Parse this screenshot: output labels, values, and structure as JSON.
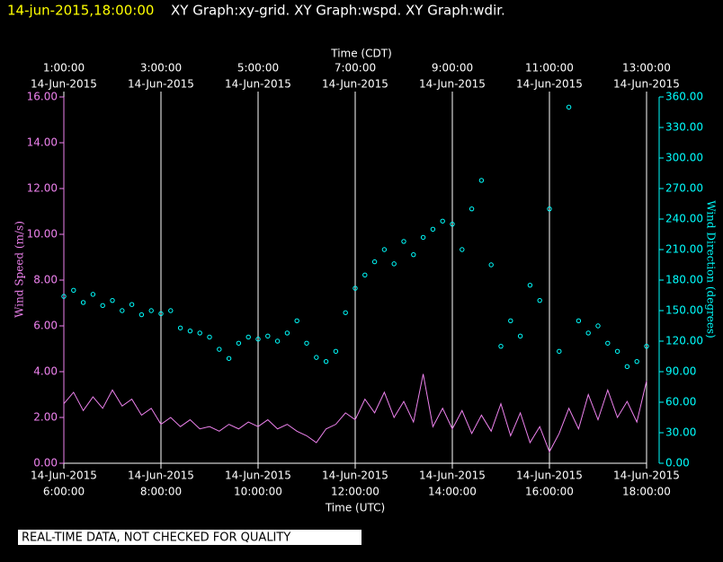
{
  "chart_data": {
    "type": "line_scatter",
    "title_time": "14-jun-2015,18:00:00",
    "title": "XY Graph:xy-grid.  XY Graph:wspd.  XY Graph:wdir.",
    "x_top_label": "Time (CDT)",
    "xlabel": "Time (UTC)",
    "ylabel": "Wind Speed (m/s)",
    "y2label": "Wind Direction (degrees)",
    "footer": "REAL-TIME DATA, NOT CHECKED FOR QUALITY",
    "grid": true,
    "xlim": [
      6,
      18
    ],
    "xticks": [
      {
        "value": 6,
        "label": [
          "14-Jun-2015",
          "6:00:00"
        ]
      },
      {
        "value": 8,
        "label": [
          "14-Jun-2015",
          "8:00:00"
        ]
      },
      {
        "value": 10,
        "label": [
          "14-Jun-2015",
          "10:00:00"
        ]
      },
      {
        "value": 12,
        "label": [
          "14-Jun-2015",
          "12:00:00"
        ]
      },
      {
        "value": 14,
        "label": [
          "14-Jun-2015",
          "14:00:00"
        ]
      },
      {
        "value": 16,
        "label": [
          "14-Jun-2015",
          "16:00:00"
        ]
      },
      {
        "value": 18,
        "label": [
          "14-Jun-2015",
          "18:00:00"
        ]
      }
    ],
    "x2ticks": [
      {
        "value": 6,
        "label": [
          "1:00:00",
          "14-Jun-2015"
        ]
      },
      {
        "value": 8,
        "label": [
          "3:00:00",
          "14-Jun-2015"
        ]
      },
      {
        "value": 10,
        "label": [
          "5:00:00",
          "14-Jun-2015"
        ]
      },
      {
        "value": 12,
        "label": [
          "7:00:00",
          "14-Jun-2015"
        ]
      },
      {
        "value": 14,
        "label": [
          "9:00:00",
          "14-Jun-2015"
        ]
      },
      {
        "value": 16,
        "label": [
          "11:00:00",
          "14-Jun-2015"
        ]
      },
      {
        "value": 18,
        "label": [
          "13:00:00",
          "14-Jun-2015"
        ]
      }
    ],
    "ylim": [
      0,
      16
    ],
    "yticks": [
      {
        "value": 0,
        "label": "0.00"
      },
      {
        "value": 2,
        "label": "2.00"
      },
      {
        "value": 4,
        "label": "4.00"
      },
      {
        "value": 6,
        "label": "6.00"
      },
      {
        "value": 8,
        "label": "8.00"
      },
      {
        "value": 10,
        "label": "10.00"
      },
      {
        "value": 12,
        "label": "12.00"
      },
      {
        "value": 14,
        "label": "14.00"
      },
      {
        "value": 16,
        "label": "16.00"
      }
    ],
    "y2lim": [
      0,
      360
    ],
    "y2ticks": [
      {
        "value": 0,
        "label": "0.00"
      },
      {
        "value": 30,
        "label": "30.00"
      },
      {
        "value": 60,
        "label": "60.00"
      },
      {
        "value": 90,
        "label": "90.00"
      },
      {
        "value": 120,
        "label": "120.00"
      },
      {
        "value": 150,
        "label": "150.00"
      },
      {
        "value": 180,
        "label": "180.00"
      },
      {
        "value": 210,
        "label": "210.00"
      },
      {
        "value": 240,
        "label": "240.00"
      },
      {
        "value": 270,
        "label": "270.00"
      },
      {
        "value": 300,
        "label": "300.00"
      },
      {
        "value": 330,
        "label": "330.00"
      },
      {
        "value": 360,
        "label": "360.00"
      }
    ],
    "x": [
      6.0,
      6.2,
      6.4,
      6.6,
      6.8,
      7.0,
      7.2,
      7.4,
      7.6,
      7.8,
      8.0,
      8.2,
      8.4,
      8.6,
      8.8,
      9.0,
      9.2,
      9.4,
      9.6,
      9.8,
      10.0,
      10.2,
      10.4,
      10.6,
      10.8,
      11.0,
      11.2,
      11.4,
      11.6,
      11.8,
      12.0,
      12.2,
      12.4,
      12.6,
      12.8,
      13.0,
      13.2,
      13.4,
      13.6,
      13.8,
      14.0,
      14.2,
      14.4,
      14.6,
      14.8,
      15.0,
      15.2,
      15.4,
      15.6,
      15.8,
      16.0,
      16.2,
      16.4,
      16.6,
      16.8,
      17.0,
      17.2,
      17.4,
      17.6,
      17.8,
      18.0
    ],
    "series": [
      {
        "name": "wspd",
        "color": "#ee82ee",
        "style": "line",
        "values": [
          2.6,
          3.1,
          2.3,
          2.9,
          2.4,
          3.2,
          2.5,
          2.8,
          2.1,
          2.4,
          1.7,
          2.0,
          1.6,
          1.9,
          1.5,
          1.6,
          1.4,
          1.7,
          1.5,
          1.8,
          1.6,
          1.9,
          1.5,
          1.7,
          1.4,
          1.2,
          0.9,
          1.5,
          1.7,
          2.2,
          1.9,
          2.8,
          2.2,
          3.1,
          2.0,
          2.7,
          1.8,
          3.9,
          1.6,
          2.4,
          1.5,
          2.3,
          1.3,
          2.1,
          1.4,
          2.6,
          1.2,
          2.2,
          0.9,
          1.6,
          0.5,
          1.3,
          2.4,
          1.5,
          3.0,
          1.9,
          3.2,
          2.0,
          2.7,
          1.8,
          3.6
        ]
      },
      {
        "name": "wdir",
        "color": "#00ffff",
        "style": "scatter",
        "axis": "y2",
        "values": [
          164,
          170,
          158,
          166,
          155,
          160,
          150,
          156,
          146,
          150,
          147,
          150,
          133,
          130,
          128,
          124,
          112,
          103,
          118,
          124,
          122,
          125,
          120,
          128,
          140,
          118,
          104,
          100,
          110,
          148,
          172,
          185,
          198,
          210,
          196,
          218,
          205,
          222,
          230,
          238,
          235,
          210,
          250,
          278,
          195,
          115,
          140,
          125,
          175,
          160,
          250,
          110,
          350,
          140,
          128,
          135,
          118,
          110,
          95,
          100,
          115
        ]
      }
    ]
  }
}
